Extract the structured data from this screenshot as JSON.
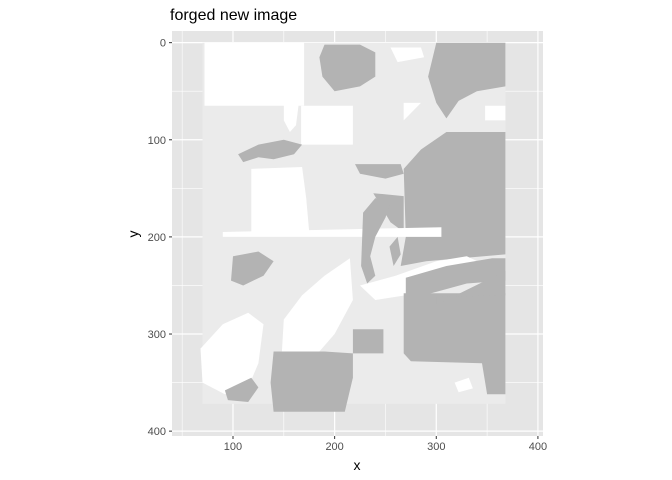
{
  "chart_data": {
    "type": "heatmap",
    "title": "forged new image",
    "xlabel": "x",
    "ylabel": "y",
    "xlim": [
      40,
      405
    ],
    "ylim": [
      405,
      -12
    ],
    "x_ticks": [
      100,
      200,
      300,
      400
    ],
    "y_ticks": [
      0,
      100,
      200,
      300,
      400
    ],
    "grid": true,
    "colors": {
      "panel": "#e5e5e5",
      "gridline": "#ffffff",
      "grey_region": "#b3b3b3",
      "white_region": "#ffffff",
      "light_region": "#ebebeb",
      "tick_text": "#4d4d4d"
    },
    "regions": [
      {
        "name": "background-tile",
        "fill": "light",
        "points": [
          [
            70,
            0
          ],
          [
            368,
            0
          ],
          [
            368,
            372
          ],
          [
            70,
            372
          ]
        ]
      },
      {
        "name": "block-top-left",
        "fill": "white",
        "points": [
          [
            72,
            0
          ],
          [
            170,
            0
          ],
          [
            170,
            65
          ],
          [
            72,
            65
          ]
        ]
      },
      {
        "name": "block-top-left-drip",
        "fill": "white",
        "points": [
          [
            150,
            60
          ],
          [
            165,
            60
          ],
          [
            162,
            85
          ],
          [
            156,
            92
          ],
          [
            150,
            80
          ]
        ]
      },
      {
        "name": "blob-top-center",
        "fill": "grey",
        "points": [
          [
            190,
            2
          ],
          [
            225,
            2
          ],
          [
            240,
            10
          ],
          [
            240,
            35
          ],
          [
            225,
            45
          ],
          [
            200,
            50
          ],
          [
            188,
            35
          ],
          [
            185,
            15
          ]
        ]
      },
      {
        "name": "shape-top-right",
        "fill": "grey",
        "points": [
          [
            300,
            0
          ],
          [
            368,
            0
          ],
          [
            368,
            45
          ],
          [
            340,
            50
          ],
          [
            322,
            60
          ],
          [
            310,
            78
          ],
          [
            300,
            62
          ],
          [
            292,
            35
          ]
        ]
      },
      {
        "name": "white-top-right-bits",
        "fill": "white",
        "points": [
          [
            255,
            5
          ],
          [
            285,
            5
          ],
          [
            288,
            15
          ],
          [
            262,
            20
          ]
        ]
      },
      {
        "name": "white-tri-1",
        "fill": "white",
        "points": [
          [
            268,
            62
          ],
          [
            285,
            62
          ],
          [
            268,
            80
          ]
        ]
      },
      {
        "name": "white-right-corner",
        "fill": "white",
        "points": [
          [
            348,
            65
          ],
          [
            368,
            65
          ],
          [
            368,
            80
          ],
          [
            348,
            80
          ]
        ]
      },
      {
        "name": "block-center-upper",
        "fill": "white",
        "points": [
          [
            167,
            65
          ],
          [
            218,
            65
          ],
          [
            218,
            105
          ],
          [
            167,
            105
          ]
        ]
      },
      {
        "name": "grey-wing-left",
        "fill": "grey",
        "points": [
          [
            105,
            115
          ],
          [
            125,
            105
          ],
          [
            150,
            100
          ],
          [
            168,
            105
          ],
          [
            160,
            115
          ],
          [
            140,
            120
          ],
          [
            125,
            118
          ],
          [
            110,
            123
          ]
        ]
      },
      {
        "name": "grey-right-mass",
        "fill": "grey",
        "points": [
          [
            310,
            92
          ],
          [
            368,
            92
          ],
          [
            368,
            218
          ],
          [
            290,
            225
          ],
          [
            265,
            230
          ],
          [
            270,
            200
          ],
          [
            268,
            130
          ],
          [
            285,
            110
          ]
        ]
      },
      {
        "name": "grey-right-mass-b",
        "fill": "grey",
        "points": [
          [
            220,
            125
          ],
          [
            265,
            125
          ],
          [
            268,
            135
          ],
          [
            250,
            140
          ],
          [
            225,
            135
          ]
        ]
      },
      {
        "name": "grey-right-mass-c",
        "fill": "grey",
        "points": [
          [
            238,
            155
          ],
          [
            268,
            158
          ],
          [
            268,
            195
          ],
          [
            255,
            185
          ]
        ]
      },
      {
        "name": "white-mid-left",
        "fill": "white",
        "points": [
          [
            118,
            130
          ],
          [
            168,
            128
          ],
          [
            172,
            160
          ],
          [
            175,
            195
          ],
          [
            118,
            195
          ]
        ]
      },
      {
        "name": "white-band-mid",
        "fill": "white",
        "points": [
          [
            90,
            195
          ],
          [
            305,
            190
          ],
          [
            305,
            200
          ],
          [
            90,
            200
          ]
        ]
      },
      {
        "name": "grey-diagonal",
        "fill": "grey",
        "points": [
          [
            228,
            175
          ],
          [
            240,
            160
          ],
          [
            255,
            165
          ],
          [
            250,
            180
          ],
          [
            240,
            200
          ],
          [
            235,
            220
          ],
          [
            240,
            240
          ],
          [
            232,
            248
          ],
          [
            226,
            230
          ]
        ]
      },
      {
        "name": "grey-diagonal-b",
        "fill": "grey",
        "points": [
          [
            254,
            210
          ],
          [
            262,
            200
          ],
          [
            265,
            218
          ],
          [
            258,
            230
          ]
        ]
      },
      {
        "name": "white-band-lower",
        "fill": "white",
        "points": [
          [
            225,
            250
          ],
          [
            260,
            240
          ],
          [
            300,
            225
          ],
          [
            330,
            220
          ],
          [
            350,
            230
          ],
          [
            340,
            245
          ],
          [
            300,
            250
          ],
          [
            270,
            260
          ],
          [
            240,
            265
          ]
        ]
      },
      {
        "name": "grey-right-sweep",
        "fill": "grey",
        "points": [
          [
            270,
            242
          ],
          [
            310,
            230
          ],
          [
            355,
            222
          ],
          [
            368,
            222
          ],
          [
            368,
            245
          ],
          [
            330,
            248
          ],
          [
            295,
            258
          ],
          [
            270,
            265
          ]
        ]
      },
      {
        "name": "grey-left-patch",
        "fill": "grey",
        "points": [
          [
            100,
            220
          ],
          [
            125,
            215
          ],
          [
            140,
            225
          ],
          [
            130,
            240
          ],
          [
            110,
            250
          ],
          [
            98,
            245
          ]
        ]
      },
      {
        "name": "white-diag-big",
        "fill": "white",
        "points": [
          [
            150,
            285
          ],
          [
            168,
            260
          ],
          [
            190,
            240
          ],
          [
            215,
            222
          ],
          [
            218,
            265
          ],
          [
            200,
            300
          ],
          [
            175,
            330
          ],
          [
            155,
            345
          ],
          [
            148,
            320
          ]
        ]
      },
      {
        "name": "white-lower-left",
        "fill": "white",
        "points": [
          [
            68,
            315
          ],
          [
            90,
            290
          ],
          [
            115,
            278
          ],
          [
            130,
            290
          ],
          [
            125,
            330
          ],
          [
            115,
            355
          ],
          [
            92,
            362
          ],
          [
            70,
            350
          ]
        ]
      },
      {
        "name": "grey-right-low-block",
        "fill": "grey",
        "points": [
          [
            268,
            258
          ],
          [
            368,
            258
          ],
          [
            368,
            362
          ],
          [
            350,
            362
          ],
          [
            345,
            330
          ],
          [
            275,
            328
          ],
          [
            268,
            320
          ]
        ]
      },
      {
        "name": "grey-right-low-tail",
        "fill": "grey",
        "points": [
          [
            300,
            270
          ],
          [
            368,
            235
          ],
          [
            368,
            260
          ],
          [
            300,
            262
          ]
        ]
      },
      {
        "name": "grey-center-step",
        "fill": "grey",
        "points": [
          [
            218,
            295
          ],
          [
            248,
            295
          ],
          [
            248,
            320
          ],
          [
            218,
            320
          ]
        ]
      },
      {
        "name": "grey-bottom-block",
        "fill": "grey",
        "points": [
          [
            140,
            318
          ],
          [
            190,
            318
          ],
          [
            218,
            320
          ],
          [
            218,
            345
          ],
          [
            210,
            380
          ],
          [
            140,
            380
          ],
          [
            137,
            350
          ]
        ]
      },
      {
        "name": "grey-bottom-left-fleck",
        "fill": "grey",
        "points": [
          [
            92,
            358
          ],
          [
            118,
            345
          ],
          [
            125,
            355
          ],
          [
            115,
            370
          ],
          [
            95,
            368
          ]
        ]
      },
      {
        "name": "white-bottom-right-dots",
        "fill": "white",
        "points": [
          [
            318,
            350
          ],
          [
            332,
            345
          ],
          [
            336,
            356
          ],
          [
            322,
            360
          ]
        ]
      }
    ]
  }
}
